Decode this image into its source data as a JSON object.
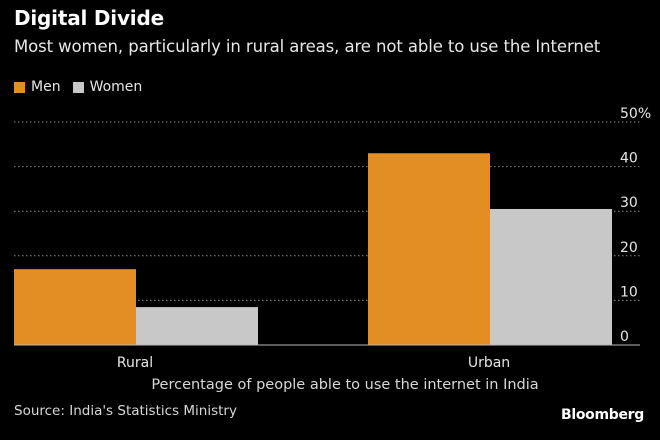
{
  "chart_data": {
    "type": "bar",
    "title": "Digital Divide",
    "subtitle": "Most women, particularly in rural areas, are not able to use the Internet",
    "categories": [
      "Rural",
      "Urban"
    ],
    "series": [
      {
        "name": "Men",
        "values": [
          17,
          43
        ],
        "color": "#e38e22"
      },
      {
        "name": "Women",
        "values": [
          8.5,
          30.5
        ],
        "color": "#c8c8c8"
      }
    ],
    "xlabel": "Percentage of people able to use the internet in India",
    "ylabel": "",
    "yticks": [
      "0",
      "10",
      "20",
      "30",
      "40",
      "50%"
    ],
    "ylim": [
      0,
      50
    ],
    "grid": true,
    "legend_position": "top-left",
    "source": "Source: India's Statistics Ministry",
    "brand": "Bloomberg"
  }
}
